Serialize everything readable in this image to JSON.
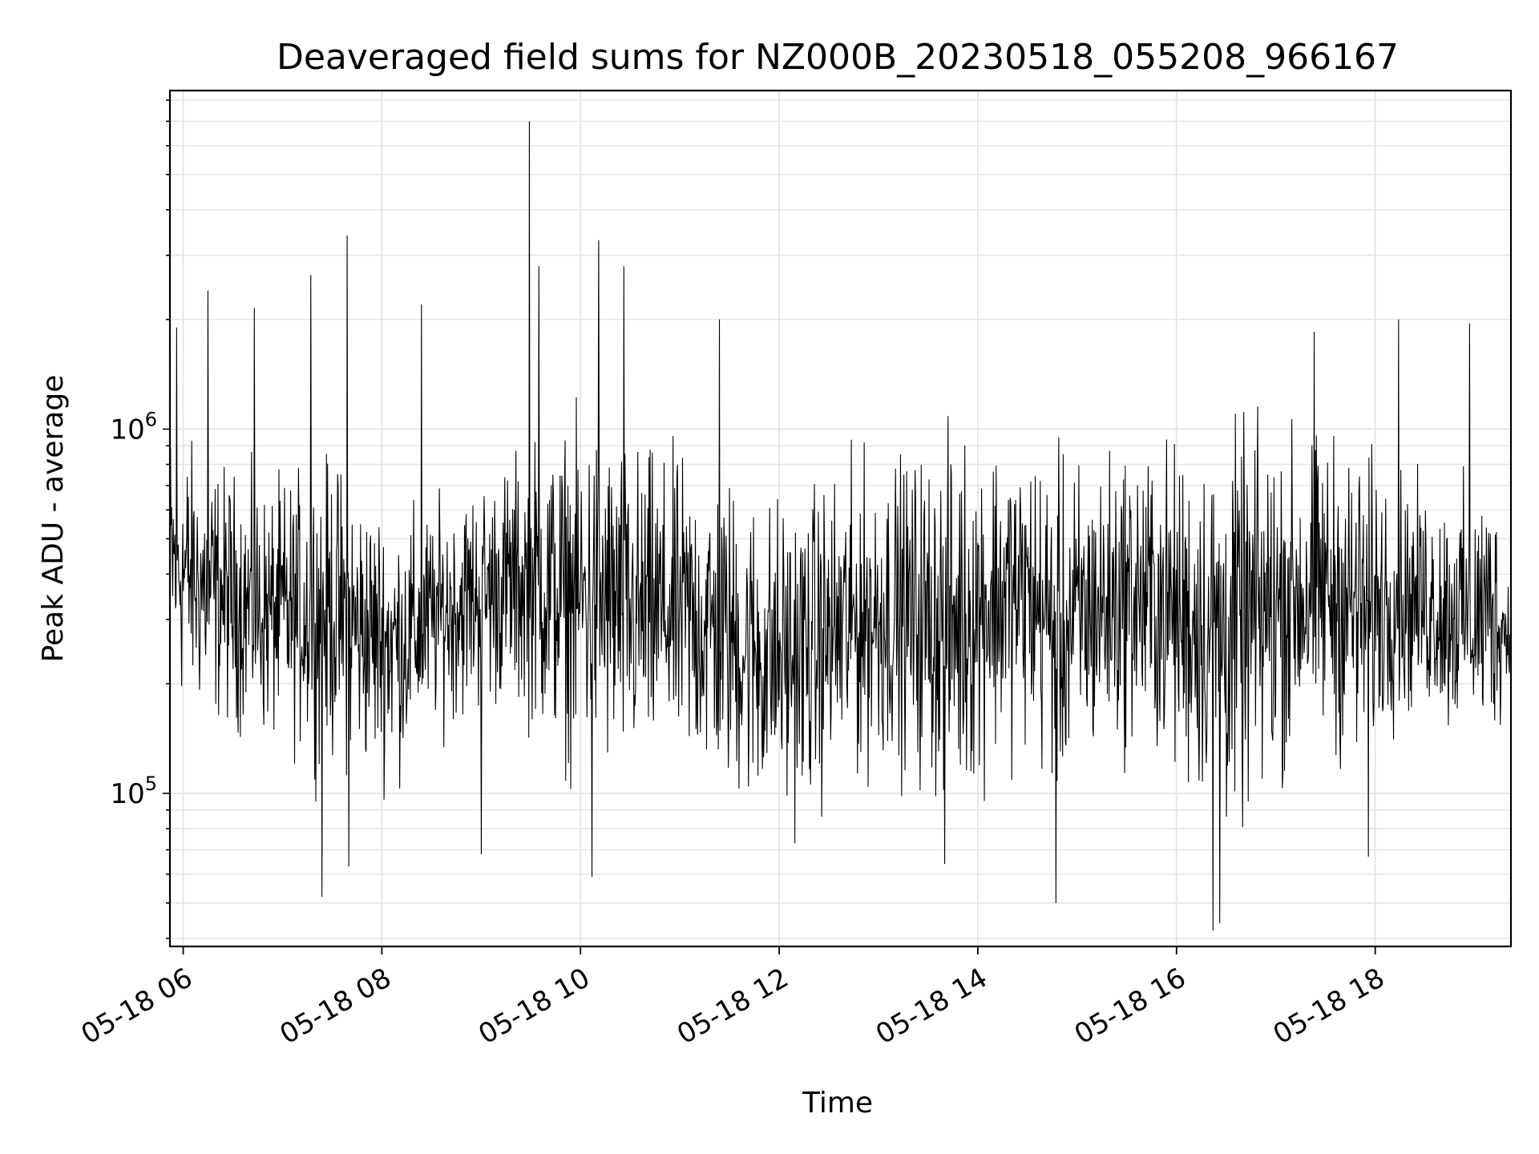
{
  "chart_data": {
    "type": "line",
    "title": "Deaveraged field sums for NZ000B_20230518_055208_966167",
    "xlabel": "Time",
    "ylabel": "Peak ADU - average",
    "yscale": "log",
    "ylim": [
      38000,
      8500000
    ],
    "xlim": [
      "05-18 05:52",
      "05-18 19:22"
    ],
    "grid": true,
    "line_color": "#000000",
    "grid_color": "#e6e6e6",
    "x_ticks": [
      {
        "value": "05-18 06:00",
        "label": "05-18 06"
      },
      {
        "value": "05-18 08:00",
        "label": "05-18 08"
      },
      {
        "value": "05-18 10:00",
        "label": "05-18 10"
      },
      {
        "value": "05-18 12:00",
        "label": "05-18 12"
      },
      {
        "value": "05-18 14:00",
        "label": "05-18 14"
      },
      {
        "value": "05-18 16:00",
        "label": "05-18 16"
      },
      {
        "value": "05-18 18:00",
        "label": "05-18 18"
      }
    ],
    "y_ticks": [
      {
        "value": 100000,
        "base": "10",
        "exp": "5"
      },
      {
        "value": 1000000,
        "base": "10",
        "exp": "6"
      }
    ],
    "series": [
      {
        "x": [
          "05-18 05:52",
          "05-18 06:10",
          "05-18 06:30",
          "05-18 06:50",
          "05-18 07:10",
          "05-18 07:30",
          "05-18 07:50",
          "05-18 08:10",
          "05-18 08:30",
          "05-18 08:50",
          "05-18 09:10",
          "05-18 09:30",
          "05-18 09:50",
          "05-18 10:10",
          "05-18 10:30",
          "05-18 10:50",
          "05-18 11:10",
          "05-18 11:30",
          "05-18 11:50",
          "05-18 12:10",
          "05-18 12:30",
          "05-18 12:50",
          "05-18 13:10",
          "05-18 13:30",
          "05-18 13:50",
          "05-18 14:10",
          "05-18 14:30",
          "05-18 14:50",
          "05-18 15:10",
          "05-18 15:30",
          "05-18 15:50",
          "05-18 16:10",
          "05-18 16:30",
          "05-18 16:50",
          "05-18 17:10",
          "05-18 17:30",
          "05-18 17:50",
          "05-18 18:10",
          "05-18 18:30",
          "05-18 18:50",
          "05-18 19:10",
          "05-18 19:22"
        ],
        "low": [
          150000,
          140000,
          130000,
          120000,
          110000,
          100000,
          95000,
          95000,
          130000,
          140000,
          150000,
          130000,
          100000,
          90000,
          85000,
          100000,
          90000,
          80000,
          70000,
          70000,
          80000,
          90000,
          100000,
          80000,
          75000,
          100000,
          110000,
          75000,
          100000,
          110000,
          100000,
          80000,
          60000,
          70000,
          100000,
          110000,
          90000,
          130000,
          140000,
          120000,
          110000,
          180000
        ],
        "high": [
          1300000,
          1000000,
          900000,
          800000,
          900000,
          1000000,
          800000,
          700000,
          700000,
          800000,
          900000,
          1100000,
          1200000,
          1300000,
          1100000,
          1000000,
          1000000,
          900000,
          800000,
          800000,
          900000,
          1000000,
          1000000,
          1100000,
          1200000,
          1200000,
          1100000,
          1000000,
          1000000,
          1100000,
          1100000,
          1100000,
          1200000,
          1300000,
          1200000,
          1200000,
          1100000,
          900000,
          800000,
          800000,
          900000,
          400000
        ],
        "spikes": [
          {
            "x": "05-18 05:56",
            "y": 1900000
          },
          {
            "x": "05-18 06:15",
            "y": 2400000
          },
          {
            "x": "05-18 06:43",
            "y": 2150000
          },
          {
            "x": "05-18 07:17",
            "y": 2650000
          },
          {
            "x": "05-18 07:39",
            "y": 3400000
          },
          {
            "x": "05-18 08:24",
            "y": 2200000
          },
          {
            "x": "05-18 09:29",
            "y": 7000000
          },
          {
            "x": "05-18 09:35",
            "y": 2800000
          },
          {
            "x": "05-18 10:11",
            "y": 3300000
          },
          {
            "x": "05-18 10:26",
            "y": 2800000
          },
          {
            "x": "05-18 11:24",
            "y": 2000000
          },
          {
            "x": "05-18 17:23",
            "y": 1850000
          },
          {
            "x": "05-18 18:14",
            "y": 2000000
          },
          {
            "x": "05-18 18:57",
            "y": 1950000
          }
        ],
        "dips": [
          {
            "x": "05-18 07:24",
            "y": 52000
          },
          {
            "x": "05-18 07:40",
            "y": 63000
          },
          {
            "x": "05-18 09:00",
            "y": 68000
          },
          {
            "x": "05-18 10:07",
            "y": 59000
          },
          {
            "x": "05-18 13:40",
            "y": 64000
          },
          {
            "x": "05-18 14:47",
            "y": 50000
          },
          {
            "x": "05-18 16:22",
            "y": 42000
          },
          {
            "x": "05-18 16:26",
            "y": 44000
          },
          {
            "x": "05-18 17:56",
            "y": 67000
          }
        ]
      }
    ]
  }
}
